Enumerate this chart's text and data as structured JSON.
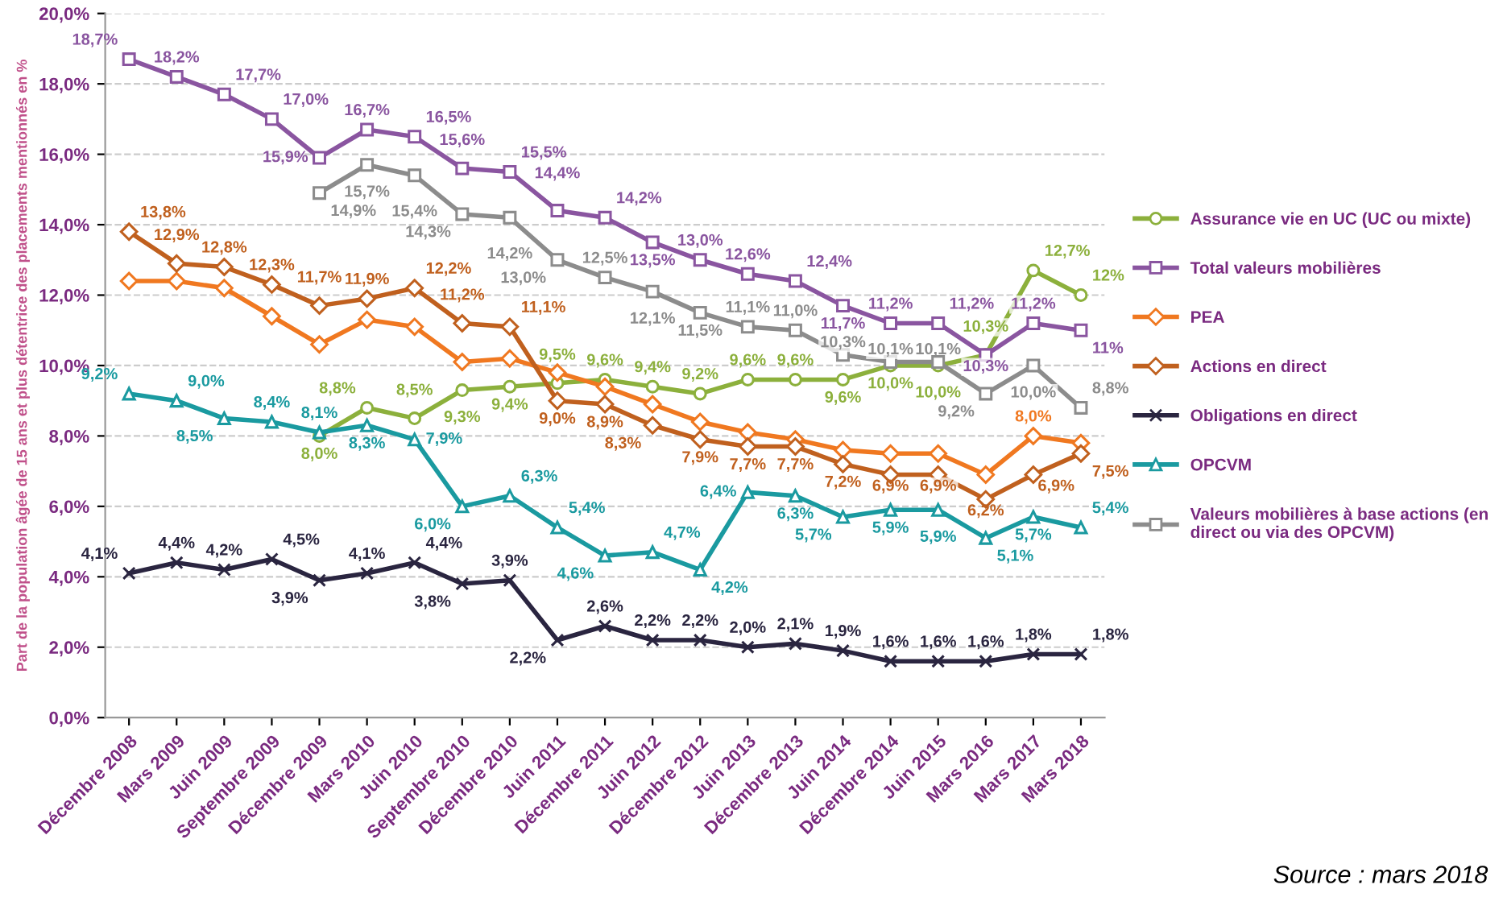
{
  "chart_data": {
    "type": "line",
    "ylabel": "Part de la population âgée de 15 ans et plus détentrice des placements mentionnés en %",
    "categories": [
      "Décembre 2008",
      "Mars 2009",
      "Juin 2009",
      "Septembre 2009",
      "Décembre 2009",
      "Mars 2010",
      "Juin 2010",
      "Septembre 2010",
      "Décembre 2010",
      "Juin 2011",
      "Décembre 2011",
      "Juin 2012",
      "Décembre 2012",
      "Juin 2013",
      "Décembre 2013",
      "Juin 2014",
      "Décembre 2014",
      "Juin 2015",
      "Mars 2016",
      "Mars 2017",
      "Mars 2018"
    ],
    "series": [
      {
        "name": "Assurance vie en UC (UC ou mixte)",
        "color": "#8cb03c",
        "marker": "circle",
        "values": [
          null,
          null,
          null,
          null,
          8.0,
          8.8,
          8.5,
          9.3,
          9.4,
          9.5,
          9.6,
          9.4,
          9.2,
          9.6,
          9.6,
          9.6,
          10.0,
          10.0,
          10.3,
          12.7,
          12
        ],
        "value_labels": [
          null,
          null,
          null,
          null,
          "8,0%",
          "8,8%",
          "8,5%",
          "9,3%",
          "9,4%",
          "9,5%",
          "9,6%",
          "9,4%",
          "9,2%",
          "9,6%",
          "9,6%",
          "9,6%",
          "10,0%",
          "10,0%",
          "10,3%",
          "12,7%",
          "12%"
        ]
      },
      {
        "name": "Total valeurs mobilières",
        "color": "#8a55a0",
        "marker": "square",
        "values": [
          18.7,
          18.2,
          17.7,
          17.0,
          15.9,
          16.7,
          16.5,
          15.6,
          15.5,
          14.4,
          14.2,
          13.5,
          13.0,
          12.6,
          12.4,
          11.7,
          11.2,
          11.2,
          10.3,
          11.2,
          11
        ],
        "value_labels": [
          "18,7%",
          "18,2%",
          "17,7%",
          "17,0%",
          "15,9%",
          "16,7%",
          "16,5%",
          "15,6%",
          "15,5%",
          "14,4%",
          "14,2%",
          "13,5%",
          "13,0%",
          "12,6%",
          "12,4%",
          "11,7%",
          "11,2%",
          "11,2%",
          "10,3%",
          "11,2%",
          "11%"
        ]
      },
      {
        "name": "PEA",
        "color": "#f07820",
        "marker": "diamond",
        "values": [
          12.4,
          12.4,
          12.2,
          11.4,
          10.6,
          11.3,
          11.1,
          10.1,
          10.2,
          9.8,
          9.4,
          8.9,
          8.4,
          8.1,
          7.9,
          7.6,
          7.5,
          7.5,
          6.9,
          8.0,
          7.8
        ],
        "value_labels": [
          null,
          null,
          null,
          null,
          null,
          null,
          null,
          null,
          null,
          null,
          null,
          null,
          null,
          null,
          null,
          null,
          null,
          null,
          null,
          "8,0%",
          null
        ]
      },
      {
        "name": "Actions en direct",
        "color": "#c0601e",
        "marker": "diamond",
        "values": [
          13.8,
          12.9,
          12.8,
          12.3,
          11.7,
          11.9,
          12.2,
          11.2,
          11.1,
          9.0,
          8.9,
          8.3,
          7.9,
          7.7,
          7.7,
          7.2,
          6.9,
          6.9,
          6.2,
          6.9,
          7.5
        ],
        "value_labels": [
          "13,8%",
          "12,9%",
          "12,8%",
          "12,3%",
          "11,7%",
          "11,9%",
          "12,2%",
          "11,2%",
          "11,1%",
          "9,0%",
          "8,9%",
          "8,3%",
          "7,9%",
          "7,7%",
          "7,7%",
          "7,2%",
          "6,9%",
          "6,9%",
          "6,2%",
          "6,9%",
          "7,5%"
        ]
      },
      {
        "name": "Obligations en direct",
        "color": "#2a2540",
        "marker": "cross",
        "values": [
          4.1,
          4.4,
          4.2,
          4.5,
          3.9,
          4.1,
          4.4,
          3.8,
          3.9,
          2.2,
          2.6,
          2.2,
          2.2,
          2.0,
          2.1,
          1.9,
          1.6,
          1.6,
          1.6,
          1.8,
          1.8
        ],
        "value_labels": [
          "4,1%",
          "4,4%",
          "4,2%",
          "4,5%",
          "3,9%",
          "4,1%",
          "4,4%",
          "3,8%",
          "3,9%",
          "2,2%",
          "2,6%",
          "2,2%",
          "2,2%",
          "2,0%",
          "2,1%",
          "1,9%",
          "1,6%",
          "1,6%",
          "1,6%",
          "1,8%",
          "1,8%"
        ]
      },
      {
        "name": "OPCVM",
        "color": "#1a9aa0",
        "marker": "triangle",
        "values": [
          9.2,
          9.0,
          8.5,
          8.4,
          8.1,
          8.3,
          7.9,
          6.0,
          6.3,
          5.4,
          4.6,
          4.7,
          4.2,
          6.4,
          6.3,
          5.7,
          5.9,
          5.9,
          5.1,
          5.7,
          5.4
        ],
        "value_labels": [
          "9,2%",
          "9,0%",
          "8,5%",
          "8,4%",
          "8,1%",
          "8,3%",
          "7,9%",
          "6,0%",
          "6,3%",
          "5,4%",
          "4,6%",
          "4,7%",
          "4,2%",
          "6,4%",
          "6,3%",
          "5,7%",
          "5,9%",
          "5,9%",
          "5,1%",
          "5,7%",
          "5,4%"
        ]
      },
      {
        "name": "Valeurs mobilières à base actions (en direct ou via des OPCVM)",
        "color": "#8c8c8c",
        "marker": "square",
        "values": [
          null,
          null,
          null,
          null,
          14.9,
          15.7,
          15.4,
          14.3,
          14.2,
          13.0,
          12.5,
          12.1,
          11.5,
          11.1,
          11.0,
          10.3,
          10.1,
          10.1,
          9.2,
          10.0,
          8.8
        ],
        "value_labels": [
          null,
          null,
          null,
          null,
          "14,9%",
          "15,7%",
          "15,4%",
          "14,3%",
          "14,2%",
          "13,0%",
          "12,5%",
          "12,1%",
          "11,5%",
          "11,1%",
          "11,0%",
          "10,3%",
          "10,1%",
          "10,1%",
          "9,2%",
          "10,0%",
          "8,8%"
        ]
      }
    ],
    "ylim": [
      0,
      20
    ],
    "yticks": [
      {
        "value": 0,
        "label": "0,0%"
      },
      {
        "value": 2,
        "label": "2,0%"
      },
      {
        "value": 4,
        "label": "4,0%"
      },
      {
        "value": 6,
        "label": "6,0%"
      },
      {
        "value": 8,
        "label": "8,0%"
      },
      {
        "value": 10,
        "label": "10,0%"
      },
      {
        "value": 12,
        "label": "12,0%"
      },
      {
        "value": 14,
        "label": "14,0%"
      },
      {
        "value": 16,
        "label": "16,0%"
      },
      {
        "value": 18,
        "label": "18,0%"
      },
      {
        "value": 20,
        "label": "20,0%"
      }
    ],
    "grid": "y",
    "legend": "right",
    "line_style": "solid",
    "annotations": [
      "Source : mars 2018"
    ]
  }
}
